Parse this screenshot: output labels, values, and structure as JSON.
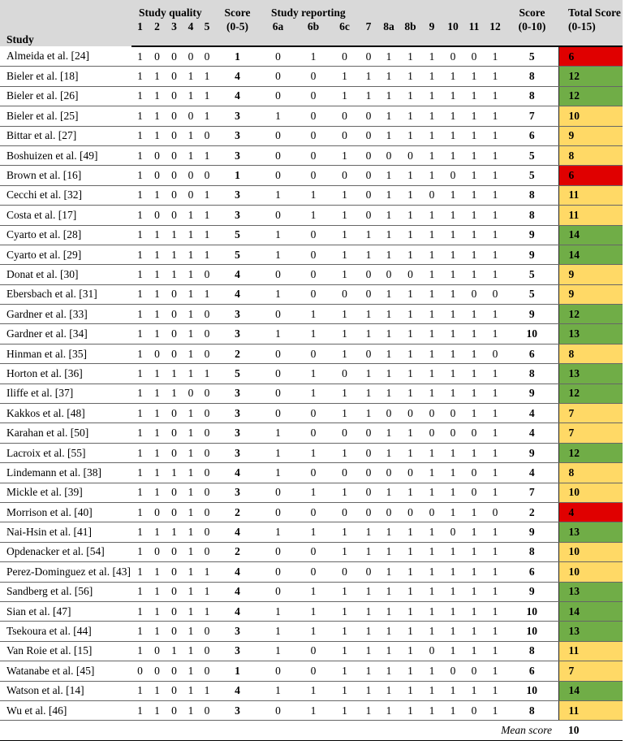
{
  "header": {
    "study": "Study",
    "quality_group": "Study quality",
    "quality_cols": [
      "1",
      "2",
      "3",
      "4",
      "5"
    ],
    "quality_score_label": [
      "Score",
      "(0-5)"
    ],
    "reporting_group": "Study reporting",
    "reporting_cols": [
      "6a",
      "6b",
      "6c",
      "7",
      "8a",
      "8b",
      "9",
      "10",
      "11",
      "12"
    ],
    "reporting_score_label": [
      "Score",
      "(0-10)"
    ],
    "total_label": [
      "Total Score",
      "(0-15)"
    ]
  },
  "colors": {
    "header_bg": "#d9d9d9",
    "red": "#e00000",
    "yellow": "#ffd966",
    "green": "#70ad47"
  },
  "rows": [
    {
      "study": "Almeida et al. [24]",
      "quality": [
        1,
        0,
        0,
        0,
        0
      ],
      "quality_score": 1,
      "reporting": [
        0,
        1,
        0,
        0,
        1,
        1,
        1,
        0,
        0,
        1
      ],
      "reporting_score": 5,
      "total": 6,
      "level": "red"
    },
    {
      "study": "Bieler et al. [18]",
      "quality": [
        1,
        1,
        0,
        1,
        1
      ],
      "quality_score": 4,
      "reporting": [
        0,
        0,
        1,
        1,
        1,
        1,
        1,
        1,
        1,
        1
      ],
      "reporting_score": 8,
      "total": 12,
      "level": "green"
    },
    {
      "study": "Bieler et al. [26]",
      "quality": [
        1,
        1,
        0,
        1,
        1
      ],
      "quality_score": 4,
      "reporting": [
        0,
        0,
        1,
        1,
        1,
        1,
        1,
        1,
        1,
        1
      ],
      "reporting_score": 8,
      "total": 12,
      "level": "green"
    },
    {
      "study": "Bieler et al. [25]",
      "quality": [
        1,
        1,
        0,
        0,
        1
      ],
      "quality_score": 3,
      "reporting": [
        1,
        0,
        0,
        0,
        1,
        1,
        1,
        1,
        1,
        1
      ],
      "reporting_score": 7,
      "total": 10,
      "level": "yellow"
    },
    {
      "study": "Bittar et al. [27]",
      "quality": [
        1,
        1,
        0,
        1,
        0
      ],
      "quality_score": 3,
      "reporting": [
        0,
        0,
        0,
        0,
        1,
        1,
        1,
        1,
        1,
        1
      ],
      "reporting_score": 6,
      "total": 9,
      "level": "yellow"
    },
    {
      "study": "Boshuizen et al. [49]",
      "quality": [
        1,
        0,
        0,
        1,
        1
      ],
      "quality_score": 3,
      "reporting": [
        0,
        0,
        1,
        0,
        0,
        0,
        1,
        1,
        1,
        1
      ],
      "reporting_score": 5,
      "total": 8,
      "level": "yellow"
    },
    {
      "study": "Brown et al. [16]",
      "quality": [
        1,
        0,
        0,
        0,
        0
      ],
      "quality_score": 1,
      "reporting": [
        0,
        0,
        0,
        0,
        1,
        1,
        1,
        0,
        1,
        1
      ],
      "reporting_score": 5,
      "total": 6,
      "level": "red"
    },
    {
      "study": "Cecchi et al. [32]",
      "quality": [
        1,
        1,
        0,
        0,
        1
      ],
      "quality_score": 3,
      "reporting": [
        1,
        1,
        1,
        0,
        1,
        1,
        0,
        1,
        1,
        1
      ],
      "reporting_score": 8,
      "total": 11,
      "level": "yellow"
    },
    {
      "study": "Costa et al. [17]",
      "quality": [
        1,
        0,
        0,
        1,
        1
      ],
      "quality_score": 3,
      "reporting": [
        0,
        1,
        1,
        0,
        1,
        1,
        1,
        1,
        1,
        1
      ],
      "reporting_score": 8,
      "total": 11,
      "level": "yellow"
    },
    {
      "study": "Cyarto et al. [28]",
      "quality": [
        1,
        1,
        1,
        1,
        1
      ],
      "quality_score": 5,
      "reporting": [
        1,
        0,
        1,
        1,
        1,
        1,
        1,
        1,
        1,
        1
      ],
      "reporting_score": 9,
      "total": 14,
      "level": "green"
    },
    {
      "study": "Cyarto et al. [29]",
      "quality": [
        1,
        1,
        1,
        1,
        1
      ],
      "quality_score": 5,
      "reporting": [
        1,
        0,
        1,
        1,
        1,
        1,
        1,
        1,
        1,
        1
      ],
      "reporting_score": 9,
      "total": 14,
      "level": "green"
    },
    {
      "study": "Donat et al. [30]",
      "quality": [
        1,
        1,
        1,
        1,
        0
      ],
      "quality_score": 4,
      "reporting": [
        0,
        0,
        1,
        0,
        0,
        0,
        1,
        1,
        1,
        1
      ],
      "reporting_score": 5,
      "total": 9,
      "level": "yellow"
    },
    {
      "study": "Ebersbach et al. [31]",
      "quality": [
        1,
        1,
        0,
        1,
        1
      ],
      "quality_score": 4,
      "reporting": [
        1,
        0,
        0,
        0,
        1,
        1,
        1,
        1,
        0,
        0
      ],
      "reporting_score": 5,
      "total": 9,
      "level": "yellow"
    },
    {
      "study": "Gardner et al. [33]",
      "quality": [
        1,
        1,
        0,
        1,
        0
      ],
      "quality_score": 3,
      "reporting": [
        0,
        1,
        1,
        1,
        1,
        1,
        1,
        1,
        1,
        1
      ],
      "reporting_score": 9,
      "total": 12,
      "level": "green"
    },
    {
      "study": "Gardner et al. [34]",
      "quality": [
        1,
        1,
        0,
        1,
        0
      ],
      "quality_score": 3,
      "reporting": [
        1,
        1,
        1,
        1,
        1,
        1,
        1,
        1,
        1,
        1
      ],
      "reporting_score": 10,
      "total": 13,
      "level": "green"
    },
    {
      "study": "Hinman et al. [35]",
      "quality": [
        1,
        0,
        0,
        1,
        0
      ],
      "quality_score": 2,
      "reporting": [
        0,
        0,
        1,
        0,
        1,
        1,
        1,
        1,
        1,
        0
      ],
      "reporting_score": 6,
      "total": 8,
      "level": "yellow"
    },
    {
      "study": "Horton et al. [36]",
      "quality": [
        1,
        1,
        1,
        1,
        1
      ],
      "quality_score": 5,
      "reporting": [
        0,
        1,
        0,
        1,
        1,
        1,
        1,
        1,
        1,
        1
      ],
      "reporting_score": 8,
      "total": 13,
      "level": "green"
    },
    {
      "study": "Iliffe et al. [37]",
      "quality": [
        1,
        1,
        1,
        0,
        0
      ],
      "quality_score": 3,
      "reporting": [
        0,
        1,
        1,
        1,
        1,
        1,
        1,
        1,
        1,
        1
      ],
      "reporting_score": 9,
      "total": 12,
      "level": "green"
    },
    {
      "study": "Kakkos et al. [48]",
      "quality": [
        1,
        1,
        0,
        1,
        0
      ],
      "quality_score": 3,
      "reporting": [
        0,
        0,
        1,
        1,
        0,
        0,
        0,
        0,
        1,
        1
      ],
      "reporting_score": 4,
      "total": 7,
      "level": "yellow"
    },
    {
      "study": "Karahan et al. [50]",
      "quality": [
        1,
        1,
        0,
        1,
        0
      ],
      "quality_score": 3,
      "reporting": [
        1,
        0,
        0,
        0,
        1,
        1,
        0,
        0,
        0,
        1
      ],
      "reporting_score": 4,
      "total": 7,
      "level": "yellow"
    },
    {
      "study": "Lacroix et al. [55]",
      "quality": [
        1,
        1,
        0,
        1,
        0
      ],
      "quality_score": 3,
      "reporting": [
        1,
        1,
        1,
        0,
        1,
        1,
        1,
        1,
        1,
        1
      ],
      "reporting_score": 9,
      "total": 12,
      "level": "green"
    },
    {
      "study": "Lindemann et al. [38]",
      "quality": [
        1,
        1,
        1,
        1,
        0
      ],
      "quality_score": 4,
      "reporting": [
        1,
        0,
        0,
        0,
        0,
        0,
        1,
        1,
        0,
        1
      ],
      "reporting_score": 4,
      "total": 8,
      "level": "yellow"
    },
    {
      "study": "Mickle et al. [39]",
      "quality": [
        1,
        1,
        0,
        1,
        0
      ],
      "quality_score": 3,
      "reporting": [
        0,
        1,
        1,
        0,
        1,
        1,
        1,
        1,
        0,
        1
      ],
      "reporting_score": 7,
      "total": 10,
      "level": "yellow"
    },
    {
      "study": "Morrison et al. [40]",
      "quality": [
        1,
        0,
        0,
        1,
        0
      ],
      "quality_score": 2,
      "reporting": [
        0,
        0,
        0,
        0,
        0,
        0,
        0,
        1,
        1,
        0
      ],
      "reporting_score": 2,
      "total": 4,
      "level": "red"
    },
    {
      "study": "Nai-Hsin et al. [41]",
      "quality": [
        1,
        1,
        1,
        1,
        0
      ],
      "quality_score": 4,
      "reporting": [
        1,
        1,
        1,
        1,
        1,
        1,
        1,
        0,
        1,
        1
      ],
      "reporting_score": 9,
      "total": 13,
      "level": "green"
    },
    {
      "study": "Opdenacker et al. [54]",
      "quality": [
        1,
        0,
        0,
        1,
        0
      ],
      "quality_score": 2,
      "reporting": [
        0,
        0,
        1,
        1,
        1,
        1,
        1,
        1,
        1,
        1
      ],
      "reporting_score": 8,
      "total": 10,
      "level": "yellow"
    },
    {
      "study": "Perez-Dominguez et al. [43]",
      "quality": [
        1,
        1,
        0,
        1,
        1
      ],
      "quality_score": 4,
      "reporting": [
        0,
        0,
        0,
        0,
        1,
        1,
        1,
        1,
        1,
        1
      ],
      "reporting_score": 6,
      "total": 10,
      "level": "yellow"
    },
    {
      "study": "Sandberg et al. [56]",
      "quality": [
        1,
        1,
        0,
        1,
        1
      ],
      "quality_score": 4,
      "reporting": [
        0,
        1,
        1,
        1,
        1,
        1,
        1,
        1,
        1,
        1
      ],
      "reporting_score": 9,
      "total": 13,
      "level": "green"
    },
    {
      "study": "Sian et al. [47]",
      "quality": [
        1,
        1,
        0,
        1,
        1
      ],
      "quality_score": 4,
      "reporting": [
        1,
        1,
        1,
        1,
        1,
        1,
        1,
        1,
        1,
        1
      ],
      "reporting_score": 10,
      "total": 14,
      "level": "green"
    },
    {
      "study": "Tsekoura et al. [44]",
      "quality": [
        1,
        1,
        0,
        1,
        0
      ],
      "quality_score": 3,
      "reporting": [
        1,
        1,
        1,
        1,
        1,
        1,
        1,
        1,
        1,
        1
      ],
      "reporting_score": 10,
      "total": 13,
      "level": "green"
    },
    {
      "study": "Van Roie et al. [15]",
      "quality": [
        1,
        0,
        1,
        1,
        0
      ],
      "quality_score": 3,
      "reporting": [
        1,
        0,
        1,
        1,
        1,
        1,
        0,
        1,
        1,
        1
      ],
      "reporting_score": 8,
      "total": 11,
      "level": "yellow"
    },
    {
      "study": "Watanabe et al. [45]",
      "quality": [
        0,
        0,
        0,
        1,
        0
      ],
      "quality_score": 1,
      "reporting": [
        0,
        0,
        1,
        1,
        1,
        1,
        1,
        0,
        0,
        1
      ],
      "reporting_score": 6,
      "total": 7,
      "level": "yellow"
    },
    {
      "study": "Watson et al. [14]",
      "quality": [
        1,
        1,
        0,
        1,
        1
      ],
      "quality_score": 4,
      "reporting": [
        1,
        1,
        1,
        1,
        1,
        1,
        1,
        1,
        1,
        1
      ],
      "reporting_score": 10,
      "total": 14,
      "level": "green"
    },
    {
      "study": "Wu et al. [46]",
      "quality": [
        1,
        1,
        0,
        1,
        0
      ],
      "quality_score": 3,
      "reporting": [
        0,
        1,
        1,
        1,
        1,
        1,
        1,
        1,
        0,
        1
      ],
      "reporting_score": 8,
      "total": 11,
      "level": "yellow"
    }
  ],
  "footer": {
    "mean_label": "Mean score",
    "mean_value": "10"
  }
}
